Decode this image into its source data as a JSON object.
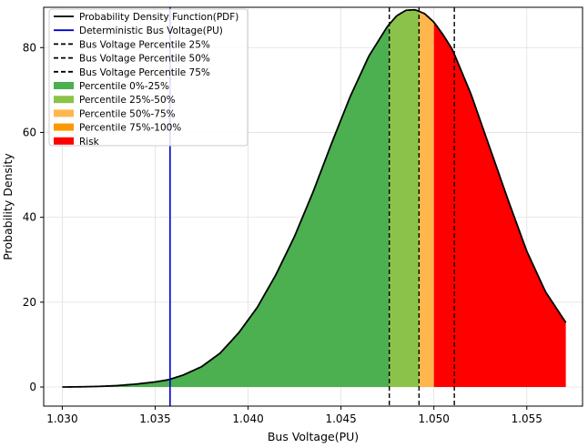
{
  "chart_data": {
    "type": "area",
    "xlabel": "Bus Voltage(PU)",
    "ylabel": "Probability Density",
    "xlim": [
      1.029,
      1.058
    ],
    "ylim": [
      -4.5,
      89.5
    ],
    "xticks": [
      1.03,
      1.035,
      1.04,
      1.045,
      1.05,
      1.055
    ],
    "xtick_labels": [
      "1.030",
      "1.035",
      "1.040",
      "1.045",
      "1.050",
      "1.055"
    ],
    "yticks": [
      0,
      20,
      40,
      60,
      80
    ],
    "ytick_labels": [
      "0",
      "20",
      "40",
      "60",
      "80"
    ],
    "grid": true,
    "legend_position": "top-left",
    "pdf": {
      "name": "Probability Density Function(PDF)",
      "color": "#000000",
      "x": [
        1.03,
        1.031,
        1.032,
        1.033,
        1.034,
        1.035,
        1.0357,
        1.0365,
        1.0375,
        1.0385,
        1.0395,
        1.0405,
        1.0415,
        1.0425,
        1.0435,
        1.0445,
        1.0455,
        1.0465,
        1.0475,
        1.048,
        1.0485,
        1.049,
        1.0495,
        1.05,
        1.0505,
        1.051,
        1.052,
        1.053,
        1.054,
        1.055,
        1.056,
        1.0571
      ],
      "y": [
        0.0,
        0.05,
        0.15,
        0.35,
        0.7,
        1.2,
        1.7,
        2.8,
        4.8,
        8.0,
        12.8,
        18.8,
        26.5,
        35.5,
        46.0,
        57.5,
        68.5,
        78.0,
        85.0,
        87.5,
        88.8,
        88.9,
        88.0,
        86.0,
        83.0,
        79.5,
        69.0,
        56.5,
        44.0,
        32.0,
        22.5,
        15.2
      ]
    },
    "deterministic_line": {
      "name": "Deterministic Bus Voltage(PU)",
      "x": 1.0358,
      "color": "#0000cc"
    },
    "percentile_lines": [
      {
        "name": "Bus Voltage Percentile 25%",
        "x": 1.0476
      },
      {
        "name": "Bus Voltage Percentile 50%",
        "x": 1.0492
      },
      {
        "name": "Bus Voltage Percentile 75%",
        "x": 1.0511
      }
    ],
    "regions": [
      {
        "name": "Percentile 0%-25%",
        "from": 1.03,
        "to": 1.0476,
        "color": "#4caf50"
      },
      {
        "name": "Percentile 25%-50%",
        "from": 1.0476,
        "to": 1.0492,
        "color": "#8bc34a"
      },
      {
        "name": "Percentile 50%-75%",
        "from": 1.0492,
        "to": 1.05,
        "color": "#ffb74d"
      },
      {
        "name": "Percentile 75%-100%",
        "from": 1.05,
        "to": 1.05,
        "color": "#ff9800"
      },
      {
        "name": "Risk",
        "from": 1.05,
        "to": 1.0571,
        "color": "#ff0000"
      }
    ],
    "legend": [
      {
        "label": "Probability Density Function(PDF)",
        "kind": "line",
        "color": "#000000",
        "dash": false
      },
      {
        "label": "Deterministic Bus Voltage(PU)",
        "kind": "line",
        "color": "#0000cc",
        "dash": false
      },
      {
        "label": "Bus Voltage Percentile 25%",
        "kind": "line",
        "color": "#000000",
        "dash": true
      },
      {
        "label": "Bus Voltage Percentile 50%",
        "kind": "line",
        "color": "#000000",
        "dash": true
      },
      {
        "label": "Bus Voltage Percentile 75%",
        "kind": "line",
        "color": "#000000",
        "dash": true
      },
      {
        "label": "Percentile 0%-25%",
        "kind": "patch",
        "color": "#4caf50"
      },
      {
        "label": "Percentile 25%-50%",
        "kind": "patch",
        "color": "#8bc34a"
      },
      {
        "label": "Percentile 50%-75%",
        "kind": "patch",
        "color": "#ffb74d"
      },
      {
        "label": "Percentile 75%-100%",
        "kind": "patch",
        "color": "#ff9800"
      },
      {
        "label": "Risk",
        "kind": "patch",
        "color": "#ff0000"
      }
    ]
  }
}
